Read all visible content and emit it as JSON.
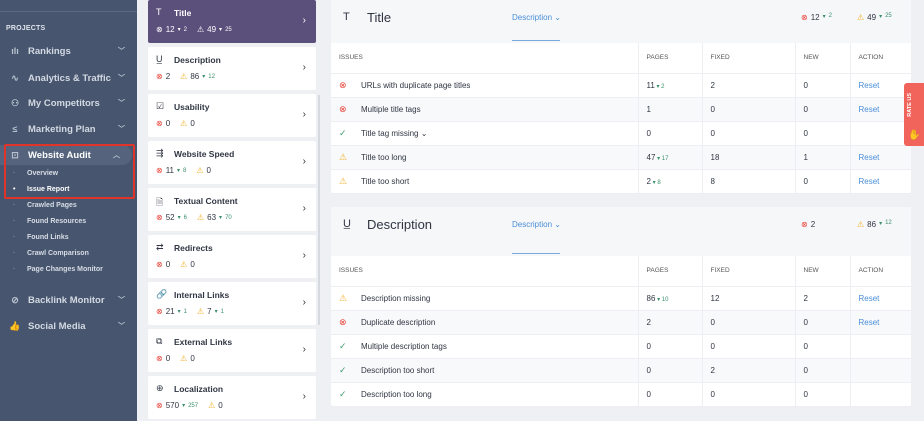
{
  "sidebar": {
    "section": "PROJECTS",
    "items": [
      {
        "label": "Rankings",
        "icon": "bar-chart-icon",
        "glyph": "ılı",
        "expanded": false
      },
      {
        "label": "Analytics & Traffic",
        "icon": "pulse-icon",
        "glyph": "∿",
        "expanded": false
      },
      {
        "label": "My Competitors",
        "icon": "competitors-icon",
        "glyph": "⚇",
        "expanded": false
      },
      {
        "label": "Marketing Plan",
        "icon": "checklist-icon",
        "glyph": "≤",
        "expanded": false
      },
      {
        "label": "Website Audit",
        "icon": "audit-icon",
        "glyph": "⊡",
        "expanded": true,
        "active": true
      },
      {
        "label": "Backlink Monitor",
        "icon": "link-icon",
        "glyph": "⊘",
        "expanded": false
      },
      {
        "label": "Social Media",
        "icon": "thumbs-up-icon",
        "glyph": "👍",
        "expanded": false
      }
    ],
    "audit_subitems": [
      "Overview",
      "Issue Report",
      "Crawled Pages",
      "Found Resources",
      "Found Links",
      "Crawl Comparison",
      "Page Changes Monitor"
    ],
    "current_subitem": "Issue Report"
  },
  "categories": [
    {
      "title": "Title",
      "icon": "text-icon",
      "glyph": "T",
      "errors": "12",
      "errors_delta": "2",
      "warnings": "49",
      "warnings_delta": "25",
      "active": true
    },
    {
      "title": "Description",
      "icon": "underline-icon",
      "glyph": "U̲",
      "errors": "2",
      "errors_delta": "",
      "warnings": "86",
      "warnings_delta": "12"
    },
    {
      "title": "Usability",
      "icon": "checkbox-icon",
      "glyph": "☑",
      "errors": "0",
      "errors_delta": "",
      "warnings": "0",
      "warnings_delta": ""
    },
    {
      "title": "Website Speed",
      "icon": "speed-icon",
      "glyph": "⇶",
      "errors": "11",
      "errors_delta": "8",
      "warnings": "0",
      "warnings_delta": ""
    },
    {
      "title": "Textual Content",
      "icon": "document-icon",
      "glyph": "🗎",
      "errors": "52",
      "errors_delta": "6",
      "warnings": "63",
      "warnings_delta": "70"
    },
    {
      "title": "Redirects",
      "icon": "redirect-icon",
      "glyph": "⇄",
      "errors": "0",
      "errors_delta": "",
      "warnings": "0",
      "warnings_delta": ""
    },
    {
      "title": "Internal Links",
      "icon": "chain-link-icon",
      "glyph": "🔗",
      "errors": "21",
      "errors_delta": "1",
      "warnings": "7",
      "warnings_delta": "1"
    },
    {
      "title": "External Links",
      "icon": "external-link-icon",
      "glyph": "⧉",
      "errors": "0",
      "errors_delta": "",
      "warnings": "0",
      "warnings_delta": ""
    },
    {
      "title": "Localization",
      "icon": "globe-icon",
      "glyph": "⊕",
      "errors": "570",
      "errors_delta": "257",
      "warnings": "0",
      "warnings_delta": ""
    }
  ],
  "columns": [
    "ISSUES",
    "PAGES",
    "FIXED",
    "NEW",
    "ACTION"
  ],
  "panels": [
    {
      "title": "Title",
      "icon": "text-icon",
      "glyph": "T",
      "dropdown": "Description",
      "errors": "12",
      "errors_delta": "2",
      "warnings": "49",
      "warnings_delta": "25",
      "rows": [
        {
          "status": "error",
          "issue": "URLs with duplicate page titles",
          "pages": "11",
          "pages_delta": "2",
          "fixed": "2",
          "new": "0",
          "action": "Reset"
        },
        {
          "status": "error",
          "issue": "Multiple title tags",
          "pages": "1",
          "pages_delta": "",
          "fixed": "0",
          "new": "0",
          "action": "Reset"
        },
        {
          "status": "ok",
          "issue": "Title tag missing",
          "expandable": true,
          "pages": "0",
          "pages_delta": "",
          "fixed": "0",
          "new": "0",
          "action": ""
        },
        {
          "status": "warning",
          "issue": "Title too long",
          "pages": "47",
          "pages_delta": "17",
          "fixed": "18",
          "new": "1",
          "action": "Reset"
        },
        {
          "status": "warning",
          "issue": "Title too short",
          "pages": "2",
          "pages_delta": "8",
          "fixed": "8",
          "new": "0",
          "action": "Reset"
        }
      ]
    },
    {
      "title": "Description",
      "icon": "underline-icon",
      "glyph": "U̲",
      "dropdown": "Description",
      "errors": "2",
      "errors_delta": "",
      "warnings": "86",
      "warnings_delta": "12",
      "rows": [
        {
          "status": "warning",
          "issue": "Description missing",
          "pages": "86",
          "pages_delta": "10",
          "fixed": "12",
          "new": "2",
          "action": "Reset"
        },
        {
          "status": "error",
          "issue": "Duplicate description",
          "pages": "2",
          "pages_delta": "",
          "fixed": "0",
          "new": "0",
          "action": "Reset"
        },
        {
          "status": "ok",
          "issue": "Multiple description tags",
          "pages": "0",
          "pages_delta": "",
          "fixed": "0",
          "new": "0",
          "action": ""
        },
        {
          "status": "ok",
          "issue": "Description too short",
          "pages": "0",
          "pages_delta": "",
          "fixed": "2",
          "new": "0",
          "action": ""
        },
        {
          "status": "ok",
          "issue": "Description too long",
          "pages": "0",
          "pages_delta": "",
          "fixed": "0",
          "new": "0",
          "action": ""
        }
      ]
    }
  ],
  "rate_us": "RATE US",
  "colors": {
    "sidebar": "#47566e",
    "active_card": "#5b4f7b",
    "error": "#e8443a",
    "warning": "#f2b12a",
    "ok": "#3f9a70",
    "link": "#4a8ed8",
    "rate_us": "#f0645c"
  }
}
